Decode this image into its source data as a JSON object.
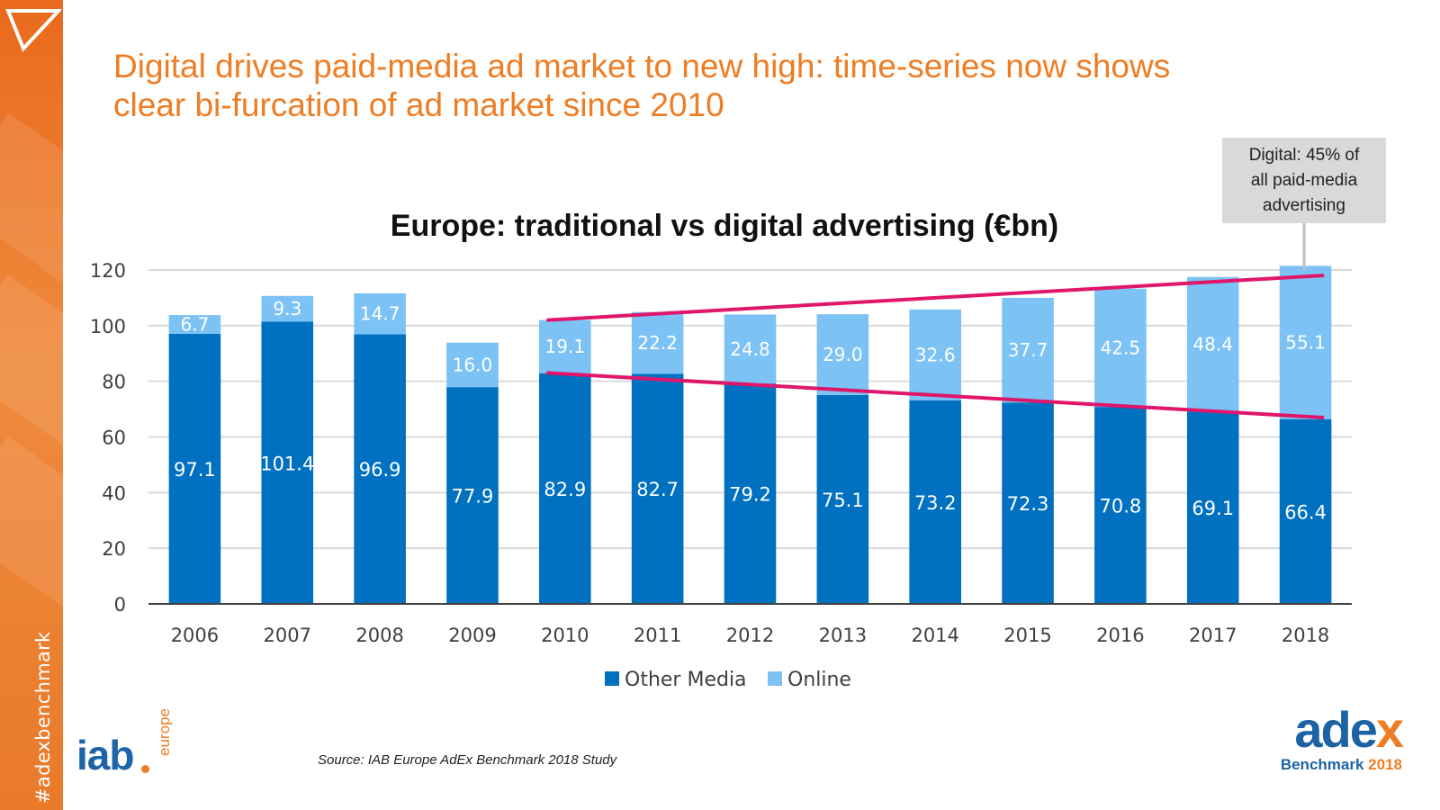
{
  "slide": {
    "headline_line1": "Digital drives paid-media ad market to new high: time-series now shows",
    "headline_line2": "clear bi-furcation of ad market since 2010",
    "hashtag": "#adexbenchmark",
    "source": "Source: IAB Europe AdEx Benchmark 2018 Study",
    "callout_lines": [
      "Digital: 45% of",
      "all paid-media",
      "advertising"
    ]
  },
  "logos": {
    "iab_word": "iab",
    "iab_sub": "europe",
    "adex_word_main": "ade",
    "adex_word_x": "x",
    "adex_benchmark": "Benchmark",
    "adex_year": "2018"
  },
  "colors": {
    "accent_orange": "#ee7d23",
    "other_media": "#0070c0",
    "online": "#7cc2f4",
    "trend_line": "#e0166b",
    "gridline": "#d9d9d9"
  },
  "chart_data": {
    "type": "bar",
    "stacked": true,
    "title": "Europe: traditional vs digital advertising (€bn)",
    "categories": [
      "2006",
      "2007",
      "2008",
      "2009",
      "2010",
      "2011",
      "2012",
      "2013",
      "2014",
      "2015",
      "2016",
      "2017",
      "2018"
    ],
    "series": [
      {
        "name": "Other Media",
        "values": [
          97.1,
          101.4,
          96.9,
          77.9,
          82.9,
          82.7,
          79.2,
          75.1,
          73.2,
          72.3,
          70.8,
          69.1,
          66.4
        ]
      },
      {
        "name": "Online",
        "values": [
          6.7,
          9.3,
          14.7,
          16.0,
          19.1,
          22.2,
          24.8,
          29.0,
          32.6,
          37.7,
          42.5,
          48.4,
          55.1
        ]
      }
    ],
    "value_labels": {
      "Other Media": [
        "97.1",
        "101.4",
        "96.9",
        "77.9",
        "82.9",
        "82.7",
        "79.2",
        "75.1",
        "73.2",
        "72.3",
        "70.8",
        "69.1",
        "66.4"
      ],
      "Online": [
        "6.7",
        "9.3",
        "14.7",
        "16.0",
        "19.1",
        "22.2",
        "24.8",
        "29.0",
        "32.6",
        "37.7",
        "42.5",
        "48.4",
        "55.1"
      ]
    },
    "ylim": [
      0,
      120
    ],
    "yticks": [
      "0",
      "20",
      "40",
      "60",
      "80",
      "100",
      "120"
    ],
    "grid": true,
    "legend": "bottom-center",
    "trend_lines": [
      {
        "name": "total-trend",
        "from": {
          "x": "2010",
          "y": 102
        },
        "to": {
          "x": "2018",
          "y": 118
        }
      },
      {
        "name": "other-media-trend",
        "from": {
          "x": "2010",
          "y": 83
        },
        "to": {
          "x": "2018",
          "y": 67
        }
      }
    ]
  }
}
